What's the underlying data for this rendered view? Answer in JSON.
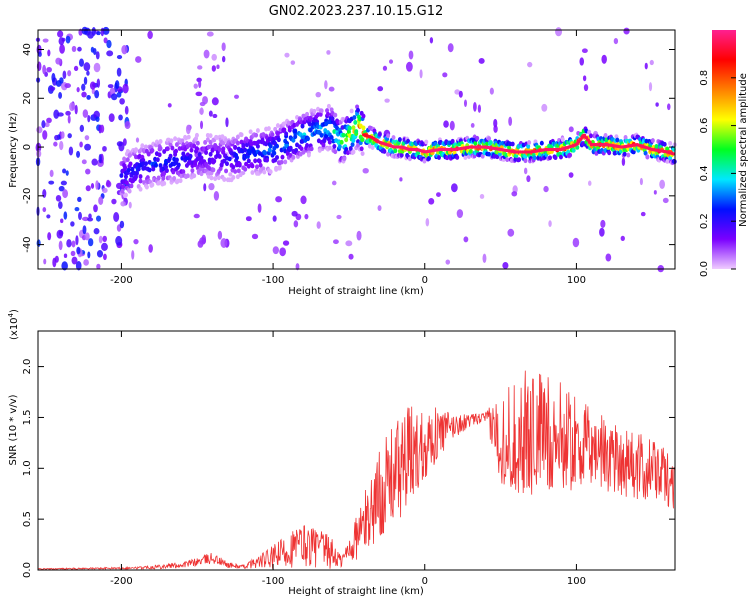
{
  "title": "GN02.2023.237.10.15.G12",
  "chart_data": [
    {
      "type": "heatmap",
      "panel": "spectrogram",
      "xlabel": "Height of straight line (km)",
      "ylabel": "Frequency (Hz)",
      "xlim": [
        -255,
        165
      ],
      "ylim": [
        -50,
        48
      ],
      "x_ticks": [
        -200,
        -100,
        0,
        100
      ],
      "y_ticks": [
        40,
        20,
        0,
        -20,
        -40
      ],
      "colorbar": {
        "label": "Normalized spectral amplitude",
        "range": [
          0.0,
          1.0
        ],
        "ticks": [
          "0.0",
          "0.2",
          "0.4",
          "0.6",
          "0.8"
        ],
        "colormap": [
          "#f0ccff",
          "#7a00ff",
          "#0010ff",
          "#00e8ff",
          "#00ff20",
          "#ffff00",
          "#ff8000",
          "#ff0000",
          "#ff2090"
        ]
      },
      "ridge": {
        "x": [
          -200,
          -190,
          -180,
          -170,
          -160,
          -150,
          -140,
          -130,
          -120,
          -110,
          -100,
          -90,
          -80,
          -70,
          -62,
          -55,
          -48,
          -44,
          -40,
          -35,
          -30,
          -25,
          -20,
          -15,
          -10,
          -5,
          0,
          10,
          20,
          30,
          40,
          50,
          60,
          70,
          80,
          90,
          100,
          105,
          110,
          120,
          130,
          140,
          150,
          160,
          165
        ],
        "frequency": [
          -12,
          -9,
          -7,
          -6,
          -5,
          -4,
          -4,
          -5,
          -3,
          -2,
          -1,
          2,
          5,
          7,
          8,
          2,
          6,
          9,
          5,
          4,
          2,
          1,
          0,
          0,
          -1,
          -1,
          -2,
          -1,
          -1,
          0,
          0,
          -1,
          -2,
          -2,
          -1,
          -1,
          1,
          5,
          1,
          1,
          0,
          1,
          -1,
          -2,
          -3
        ],
        "amplitude": [
          0.25,
          0.28,
          0.3,
          0.3,
          0.28,
          0.22,
          0.2,
          0.25,
          0.3,
          0.32,
          0.35,
          0.38,
          0.4,
          0.42,
          0.45,
          0.6,
          0.7,
          0.85,
          0.9,
          0.92,
          0.95,
          0.96,
          0.97,
          0.97,
          0.97,
          0.97,
          0.97,
          0.98,
          0.97,
          0.96,
          0.97,
          0.97,
          0.96,
          0.95,
          0.96,
          0.96,
          0.95,
          0.94,
          0.95,
          0.96,
          0.96,
          0.95,
          0.96,
          0.95,
          0.94
        ]
      }
    },
    {
      "type": "line",
      "panel": "snr",
      "xlabel": "Height of straight line (km)",
      "ylabel": "SNR (10 * v/v)",
      "y_multiplier": "(x10",
      "y_multiplier_exp": "4",
      "y_multiplier_close": ")",
      "xlim": [
        -255,
        165
      ],
      "ylim": [
        0.0,
        2.35
      ],
      "x_ticks": [
        -200,
        -100,
        0,
        100
      ],
      "y_ticks": [
        "0.0",
        "0.5",
        "1.0",
        "1.5",
        "2.0"
      ],
      "color": "#ee3333",
      "envelope": {
        "x": [
          -255,
          -190,
          -180,
          -160,
          -150,
          -140,
          -130,
          -120,
          -110,
          -100,
          -90,
          -80,
          -70,
          -60,
          -55,
          -50,
          -40,
          -30,
          -20,
          -10,
          0,
          10,
          20,
          30,
          40,
          50,
          60,
          70,
          80,
          90,
          100,
          110,
          120,
          130,
          140,
          150,
          160,
          165
        ],
        "mean": [
          0.01,
          0.02,
          0.03,
          0.05,
          0.08,
          0.12,
          0.05,
          0.03,
          0.08,
          0.12,
          0.2,
          0.25,
          0.22,
          0.15,
          0.08,
          0.2,
          0.45,
          0.75,
          0.95,
          1.1,
          1.25,
          1.35,
          1.42,
          1.47,
          1.5,
          1.3,
          1.3,
          1.35,
          1.35,
          1.3,
          1.25,
          1.2,
          1.15,
          1.1,
          1.0,
          1.0,
          0.9,
          0.85
        ],
        "spread": [
          0.005,
          0.01,
          0.02,
          0.03,
          0.04,
          0.06,
          0.03,
          0.02,
          0.06,
          0.12,
          0.18,
          0.22,
          0.2,
          0.15,
          0.06,
          0.15,
          0.3,
          0.45,
          0.5,
          0.55,
          0.35,
          0.25,
          0.12,
          0.06,
          0.05,
          0.45,
          0.6,
          0.65,
          0.6,
          0.55,
          0.45,
          0.4,
          0.4,
          0.38,
          0.35,
          0.3,
          0.28,
          0.25
        ]
      }
    }
  ]
}
